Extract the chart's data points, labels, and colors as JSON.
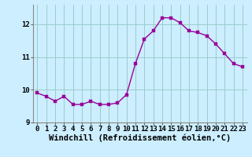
{
  "hours": [
    0,
    1,
    2,
    3,
    4,
    5,
    6,
    7,
    8,
    9,
    10,
    11,
    12,
    13,
    14,
    15,
    16,
    17,
    18,
    19,
    20,
    21,
    22,
    23
  ],
  "values": [
    9.9,
    9.8,
    9.65,
    9.8,
    9.55,
    9.55,
    9.65,
    9.55,
    9.55,
    9.6,
    9.85,
    10.8,
    11.55,
    11.8,
    12.2,
    12.2,
    12.05,
    11.8,
    11.75,
    11.65,
    11.4,
    11.1,
    10.8,
    10.7
  ],
  "line_color": "#990099",
  "marker_color": "#990099",
  "bg_color": "#cceeff",
  "grid_color": "#99cccc",
  "xlabel": "Windchill (Refroidissement éolien,°C)",
  "ylim": [
    9.0,
    12.6
  ],
  "yticks": [
    9,
    10,
    11,
    12
  ],
  "xlim": [
    -0.5,
    23.5
  ],
  "xticks": [
    0,
    1,
    2,
    3,
    4,
    5,
    6,
    7,
    8,
    9,
    10,
    11,
    12,
    13,
    14,
    15,
    16,
    17,
    18,
    19,
    20,
    21,
    22,
    23
  ],
  "tick_fontsize": 6.5,
  "xlabel_fontsize": 7.5,
  "line_width": 1.0,
  "marker_size": 2.5
}
